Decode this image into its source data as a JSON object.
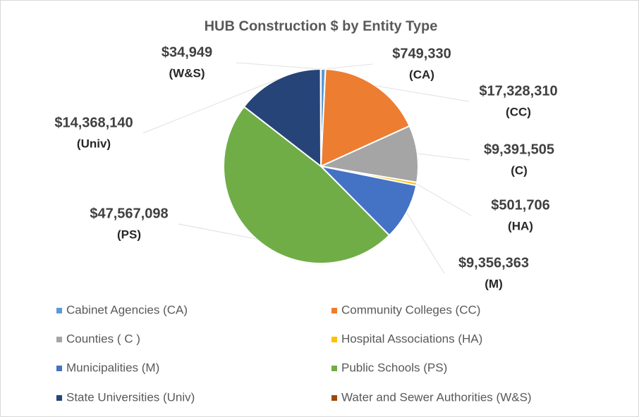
{
  "chart_data": {
    "type": "pie",
    "title": "HUB Construction $ by Entity Type",
    "categories": [
      "Cabinet Agencies (CA)",
      "Community Colleges (CC)",
      "Counties ( C )",
      "Hospital Associations (HA)",
      "Municipalities (M)",
      "Public Schools (PS)",
      "State Universities (Univ)",
      "Water and Sewer Authorities (W&S)"
    ],
    "values": [
      749330,
      17328310,
      9391505,
      501706,
      9356363,
      47567098,
      14368140,
      34949
    ],
    "value_labels": [
      "$749,330",
      "$17,328,310",
      "$9,391,505",
      "$501,706",
      "$9,356,363",
      "$47,567,098",
      "$14,368,140",
      "$34,949"
    ],
    "slice_tags": [
      "(CA)",
      "(CC)",
      "(C)",
      "(HA)",
      "(M)",
      "(PS)",
      "(Univ)",
      "(W&S)"
    ],
    "colors": [
      "#5b9bd5",
      "#ed7d31",
      "#a5a5a5",
      "#ffc000",
      "#4472c4",
      "#70ad47",
      "#264478",
      "#9e480e"
    ],
    "legend": "bottom"
  }
}
